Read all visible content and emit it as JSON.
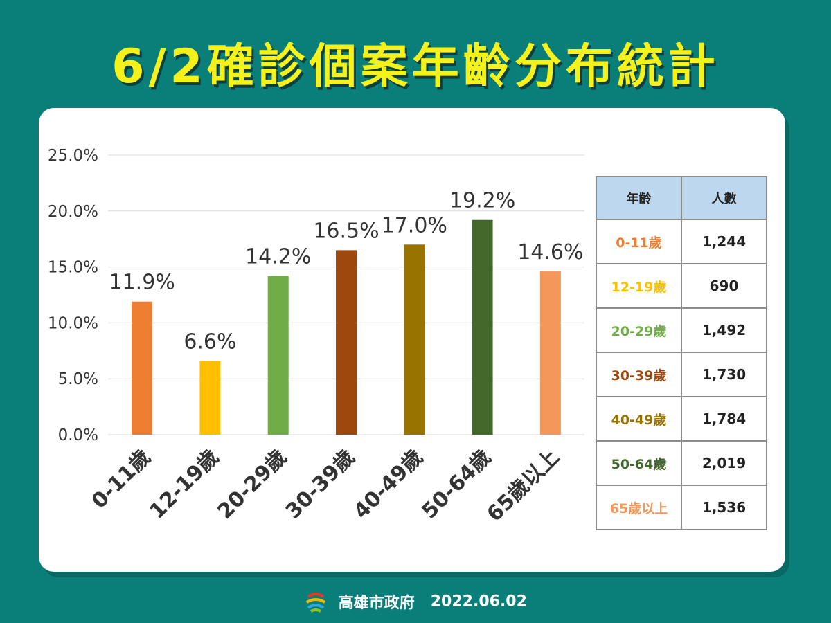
{
  "title": "6/2確診個案年齡分布統計",
  "footer": {
    "org": "高雄市政府",
    "date": "2022.06.02"
  },
  "table": {
    "headers": [
      "年齡",
      "人數"
    ],
    "rows": [
      {
        "age": "0-11歲",
        "count": "1,244",
        "color": "#ed7d31"
      },
      {
        "age": "12-19歲",
        "count": "690",
        "color": "#ffc000"
      },
      {
        "age": "20-29歲",
        "count": "1,492",
        "color": "#70ad47"
      },
      {
        "age": "30-39歲",
        "count": "1,730",
        "color": "#9e480e"
      },
      {
        "age": "40-49歲",
        "count": "1,784",
        "color": "#997300"
      },
      {
        "age": "50-64歲",
        "count": "2,019",
        "color": "#43682b"
      },
      {
        "age": "65歲以上",
        "count": "1,536",
        "color": "#f4975a"
      }
    ]
  },
  "chart_data": {
    "type": "bar",
    "categories": [
      "0-11歲",
      "12-19歲",
      "20-29歲",
      "30-39歲",
      "40-49歲",
      "50-64歲",
      "65歲以上"
    ],
    "values": [
      11.9,
      6.6,
      14.2,
      16.5,
      17.0,
      19.2,
      14.6
    ],
    "data_labels": [
      "11.9%",
      "6.6%",
      "14.2%",
      "16.5%",
      "17.0%",
      "19.2%",
      "14.6%"
    ],
    "colors": [
      "#ed7d31",
      "#ffc000",
      "#70ad47",
      "#9e480e",
      "#997300",
      "#43682b",
      "#f4975a"
    ],
    "ylim": [
      0,
      25
    ],
    "yticks": [
      "0.0%",
      "5.0%",
      "10.0%",
      "15.0%",
      "20.0%",
      "25.0%"
    ],
    "grid": true
  }
}
